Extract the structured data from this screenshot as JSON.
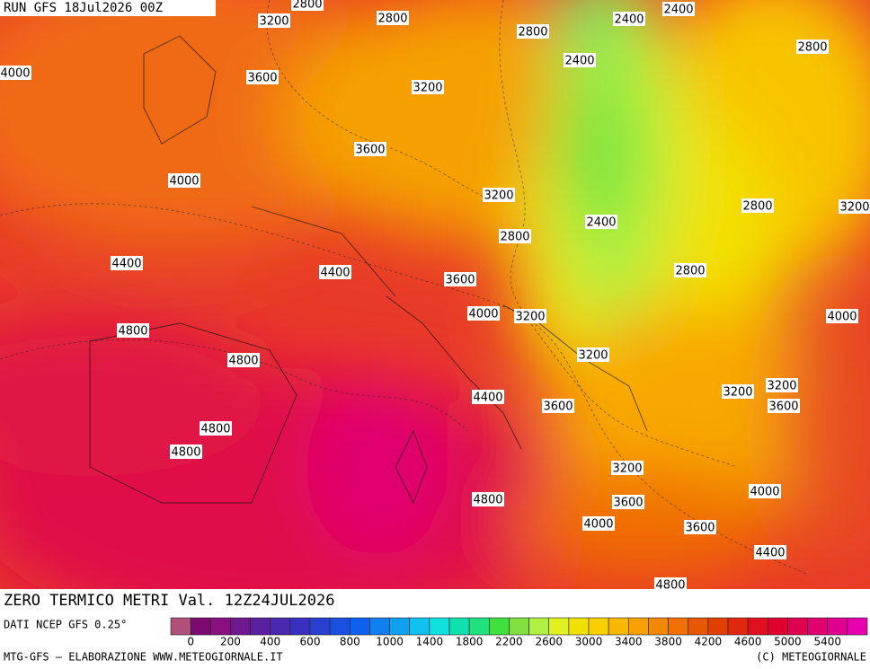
{
  "header": {
    "run": "RUN GFS 18Jul2026 00Z"
  },
  "map": {
    "title": "ZERO TERMICO METRI Val. 12Z24JUL2026",
    "contour_labels": [
      2800,
      3200,
      2800,
      2400,
      2400,
      2800,
      2800,
      4000,
      2400,
      3600,
      3200,
      3600,
      4000,
      3200,
      2800,
      3200,
      2400,
      2800,
      4400,
      4400,
      2800,
      3600,
      4000,
      3200,
      4000,
      4800,
      3200,
      4800,
      3200,
      3200,
      4400,
      3600,
      3600,
      4800,
      4800,
      3200,
      4800,
      4000,
      3600,
      4000,
      3600,
      4400,
      4800
    ]
  },
  "colorbar": {
    "source": "DATI NCEP GFS 0.25°",
    "ticks": [
      0,
      200,
      400,
      600,
      800,
      1000,
      1400,
      1800,
      2200,
      2600,
      3000,
      3400,
      3800,
      4200,
      4600,
      5000,
      5400
    ],
    "colors": [
      "#b0507a",
      "#7a0a6e",
      "#8a1080",
      "#701890",
      "#5a20a0",
      "#4a28b0",
      "#3a30c0",
      "#2a40d0",
      "#1a50e0",
      "#1060f0",
      "#1080f0",
      "#10a0f0",
      "#10c0f0",
      "#10e0e0",
      "#10e0b0",
      "#20e080",
      "#40e040",
      "#80e040",
      "#b0f040",
      "#e0f020",
      "#f0e000",
      "#f8d000",
      "#f8b800",
      "#f8a000",
      "#f08800",
      "#f07000",
      "#e85800",
      "#e04000",
      "#e02810",
      "#e01020",
      "#e00030",
      "#e00050",
      "#e00070",
      "#e00090",
      "#e800b0"
    ]
  },
  "footer": {
    "left": "MTG-GFS — ELABORAZIONE WWW.METEOGIORNALE.IT",
    "right": "(C) METEOGIORNALE"
  }
}
